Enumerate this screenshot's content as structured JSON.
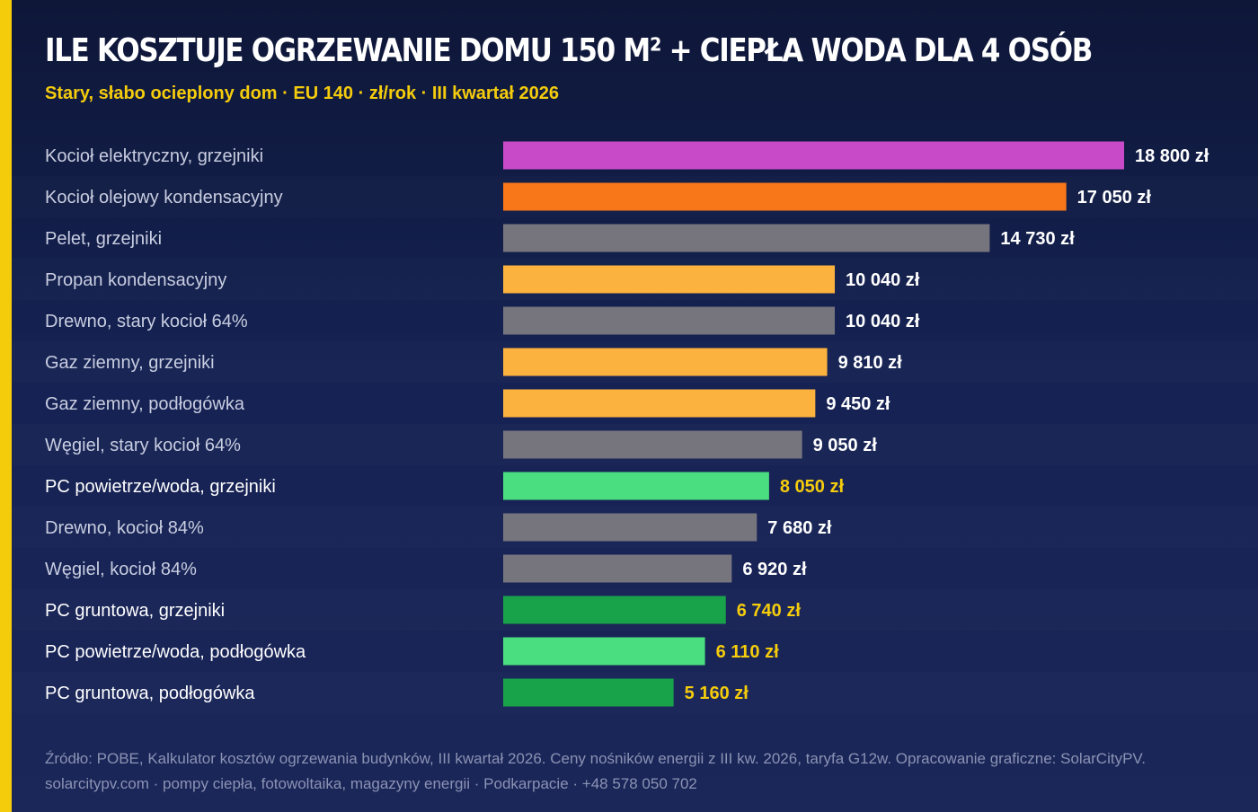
{
  "header": {
    "title": "ILE KOSZTUJE OGRZEWANIE DOMU 150 M² + CIEPŁA WODA DLA 4 OSÓB",
    "subtitle": "Stary, słabo ocieplony dom · EU 140 · zł/rok · III kwartał 2026"
  },
  "footer": {
    "source": "Źródło: POBE, Kalkulator kosztów ogrzewania budynków, III kwartał 2026. Ceny nośników energii z III kw. 2026, taryfa G12w. Opracowanie graficzne: SolarCityPV.",
    "contact": "solarcitypv.com · pompy ciepła, fotowoltaika, magazyny energii · Podkarpacie · +48 578 050 702"
  },
  "colors": {
    "accent": "#f5cc0c",
    "electric": "#c84ac8",
    "oil": "#f77719",
    "solid_fuel": "#76757e",
    "gas_propane": "#fcb23e",
    "heat_pump_air": "#4ade80",
    "heat_pump_ground": "#18a34a",
    "label_highlight": "#ffffff",
    "label_default": "#c8cde0",
    "value_default": "#ffffff",
    "value_highlight": "#f5cc0c"
  },
  "chart_data": {
    "type": "bar",
    "orientation": "horizontal",
    "unit": "zł",
    "xlim": [
      0,
      18800
    ],
    "grid": false,
    "legend": "none",
    "categories": [
      "Kocioł elektryczny, grzejniki",
      "Kocioł olejowy kondensacyjny",
      "Pelet, grzejniki",
      "Propan kondensacyjny",
      "Drewno, stary kocioł 64%",
      "Gaz ziemny, grzejniki",
      "Gaz ziemny, podłogówka",
      "Węgiel, stary kocioł 64%",
      "PC powietrze/woda, grzejniki",
      "Drewno, kocioł 84%",
      "Węgiel, kocioł 84%",
      "PC gruntowa, grzejniki",
      "PC powietrze/woda, podłogówka",
      "PC gruntowa, podłogówka"
    ],
    "values": [
      18800,
      17050,
      14730,
      10040,
      10040,
      9810,
      9450,
      9050,
      8050,
      7680,
      6920,
      6740,
      6110,
      5160
    ],
    "value_labels": [
      "18 800 zł",
      "17 050 zł",
      "14 730 zł",
      "10 040 zł",
      "10 040 zł",
      "9 810 zł",
      "9 450 zł",
      "9 050 zł",
      "8 050 zł",
      "7 680 zł",
      "6 920 zł",
      "6 740 zł",
      "6 110 zł",
      "5 160 zł"
    ],
    "bar_colors": [
      "#c84ac8",
      "#f77719",
      "#76757e",
      "#fcb23e",
      "#76757e",
      "#fcb23e",
      "#fcb23e",
      "#76757e",
      "#4ade80",
      "#76757e",
      "#76757e",
      "#18a34a",
      "#4ade80",
      "#18a34a"
    ],
    "highlighted": [
      false,
      false,
      false,
      false,
      false,
      false,
      false,
      false,
      true,
      false,
      false,
      true,
      true,
      true
    ]
  }
}
